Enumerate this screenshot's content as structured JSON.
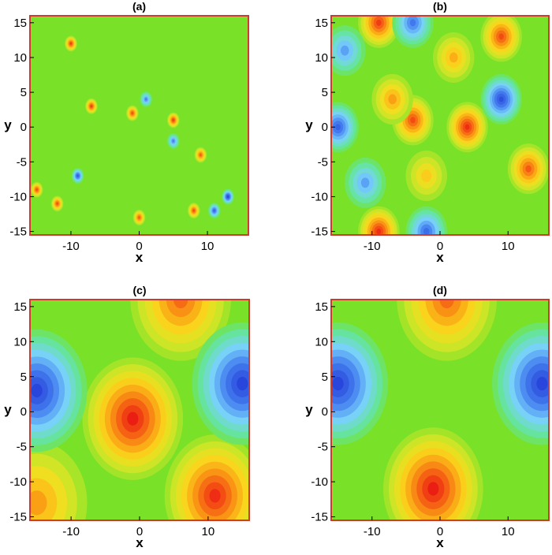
{
  "figure": {
    "panels": [
      {
        "title": "(a)",
        "xlabel": "x",
        "ylabel": "y"
      },
      {
        "title": "(b)",
        "xlabel": "x",
        "ylabel": "y"
      },
      {
        "title": "(c)",
        "xlabel": "x",
        "ylabel": "y"
      },
      {
        "title": "(d)",
        "xlabel": "x",
        "ylabel": "y"
      }
    ]
  },
  "chart_data": [
    {
      "type": "heatmap",
      "title": "(a)",
      "xlabel": "x",
      "ylabel": "y",
      "xlim": [
        -16,
        16
      ],
      "ylim": [
        -15.5,
        16
      ],
      "xticks": [
        "-10",
        "0",
        "10"
      ],
      "yticks": [
        "15",
        "10",
        "5",
        "0",
        "-5",
        "-10",
        "-15"
      ],
      "colormap": "blue-cyan-green-yellow-orange-red",
      "value_range": [
        -1,
        1
      ],
      "grid": false,
      "features": [
        {
          "label": "peak",
          "x": -10,
          "y": 12,
          "value": 0.9
        },
        {
          "label": "peak",
          "x": -7,
          "y": 3,
          "value": 0.9
        },
        {
          "label": "peak",
          "x": -1,
          "y": 2,
          "value": 0.85
        },
        {
          "label": "peak",
          "x": 5,
          "y": 1,
          "value": 0.9
        },
        {
          "label": "peak",
          "x": -15,
          "y": -9,
          "value": 0.85
        },
        {
          "label": "peak",
          "x": -12,
          "y": -11,
          "value": 0.85
        },
        {
          "label": "peak",
          "x": 0,
          "y": -13,
          "value": 0.8
        },
        {
          "label": "peak",
          "x": 8,
          "y": -12,
          "value": 0.85
        },
        {
          "label": "peak",
          "x": 9,
          "y": -4,
          "value": 0.8
        },
        {
          "label": "trough",
          "x": 13,
          "y": -10,
          "value": -1.0
        },
        {
          "label": "trough",
          "x": -9,
          "y": -7,
          "value": -0.9
        },
        {
          "label": "trough",
          "x": 11,
          "y": -12,
          "value": -0.85
        },
        {
          "label": "trough",
          "x": 1,
          "y": 4,
          "value": -0.7
        },
        {
          "label": "trough",
          "x": 5,
          "y": -2,
          "value": -0.7
        }
      ]
    },
    {
      "type": "heatmap",
      "title": "(b)",
      "xlabel": "x",
      "ylabel": "y",
      "xlim": [
        -16,
        16
      ],
      "ylim": [
        -15.5,
        16
      ],
      "xticks": [
        "-10",
        "0",
        "10"
      ],
      "yticks": [
        "15",
        "10",
        "5",
        "0",
        "-5",
        "-10",
        "-15"
      ],
      "colormap": "blue-cyan-green-yellow-orange-red",
      "value_range": [
        -1,
        1
      ],
      "grid": false,
      "features": [
        {
          "label": "peak",
          "x": -9,
          "y": 15,
          "value": 0.9
        },
        {
          "label": "peak",
          "x": 9,
          "y": 13,
          "value": 0.85
        },
        {
          "label": "peak",
          "x": -4,
          "y": 1,
          "value": 0.85
        },
        {
          "label": "peak",
          "x": 4,
          "y": 0,
          "value": 0.95
        },
        {
          "label": "peak",
          "x": 13,
          "y": -6,
          "value": 0.8
        },
        {
          "label": "peak",
          "x": -9,
          "y": -15,
          "value": 0.95
        },
        {
          "label": "peak",
          "x": 2,
          "y": 10,
          "value": 0.55
        },
        {
          "label": "peak",
          "x": -7,
          "y": 4,
          "value": 0.6
        },
        {
          "label": "peak",
          "x": -2,
          "y": -7,
          "value": 0.45
        },
        {
          "label": "trough",
          "x": -15,
          "y": 0,
          "value": -0.85
        },
        {
          "label": "trough",
          "x": 9,
          "y": 4,
          "value": -0.95
        },
        {
          "label": "trough",
          "x": -4,
          "y": 15,
          "value": -0.75
        },
        {
          "label": "trough",
          "x": -2,
          "y": -15,
          "value": -0.8
        },
        {
          "label": "trough",
          "x": -11,
          "y": -8,
          "value": -0.6
        },
        {
          "label": "trough",
          "x": -14,
          "y": 11,
          "value": -0.6
        }
      ]
    },
    {
      "type": "heatmap",
      "title": "(c)",
      "xlabel": "x",
      "ylabel": "y",
      "xlim": [
        -16,
        16
      ],
      "ylim": [
        -15.5,
        16
      ],
      "xticks": [
        "-10",
        "0",
        "10"
      ],
      "yticks": [
        "15",
        "10",
        "5",
        "0",
        "-5",
        "-10",
        "-15"
      ],
      "colormap": "blue-cyan-green-yellow-orange-red",
      "value_range": [
        -1,
        1
      ],
      "grid": false,
      "features": [
        {
          "label": "peak",
          "x": -1,
          "y": -1,
          "value": 1.0
        },
        {
          "label": "peak",
          "x": 11,
          "y": -12,
          "value": 0.95
        },
        {
          "label": "peak",
          "x": 6,
          "y": 16,
          "value": 0.75
        },
        {
          "label": "peak",
          "x": -15,
          "y": -13,
          "value": 0.6
        },
        {
          "label": "trough",
          "x": -15,
          "y": 3,
          "value": -1.0
        },
        {
          "label": "trough",
          "x": 15,
          "y": 4,
          "value": -1.0
        }
      ]
    },
    {
      "type": "heatmap",
      "title": "(d)",
      "xlabel": "x",
      "ylabel": "y",
      "xlim": [
        -16,
        16
      ],
      "ylim": [
        -15.5,
        16
      ],
      "xticks": [
        "-10",
        "0",
        "10"
      ],
      "yticks": [
        "15",
        "10",
        "5",
        "0",
        "-5",
        "-10",
        "-15"
      ],
      "colormap": "blue-cyan-green-yellow-orange-red",
      "value_range": [
        -1,
        1
      ],
      "grid": false,
      "features": [
        {
          "label": "peak",
          "x": -1,
          "y": -11,
          "value": 1.0
        },
        {
          "label": "peak",
          "x": 1,
          "y": 16,
          "value": 0.75
        },
        {
          "label": "trough",
          "x": -15,
          "y": 4,
          "value": -1.0
        },
        {
          "label": "trough",
          "x": 15,
          "y": 4,
          "value": -1.0
        }
      ]
    }
  ]
}
